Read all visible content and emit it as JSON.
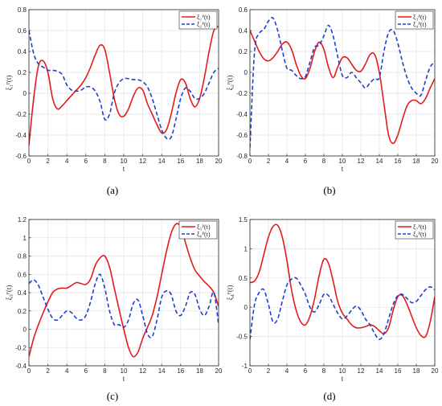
{
  "chart_data": [
    {
      "type": "line",
      "caption": "(a)",
      "xlabel": "t",
      "ylabel": "ξ₁ᴾ(t)",
      "xlim": [
        0,
        20
      ],
      "ylim": [
        -0.6,
        0.8
      ],
      "xticks": [
        "0",
        "2",
        "4",
        "6",
        "8",
        "10",
        "12",
        "14",
        "16",
        "18",
        "20"
      ],
      "yticks": [
        "-0.6",
        "-0.4",
        "-0.2",
        "0",
        "0.2",
        "0.4",
        "0.6",
        "0.8"
      ],
      "grid": true,
      "legend_position": "top-right",
      "series": [
        {
          "name": "ξ₁ᴾ(t)",
          "color": "#e41a1c",
          "style": "solid",
          "x": [
            0,
            0.5,
            1,
            1.5,
            2,
            2.5,
            3,
            3.5,
            4,
            4.5,
            5,
            5.5,
            6,
            6.5,
            7,
            7.5,
            8,
            8.5,
            9,
            9.5,
            10,
            10.5,
            11,
            11.5,
            12,
            12.5,
            13,
            13.5,
            14,
            14.5,
            15,
            15.5,
            16,
            16.5,
            17,
            17.5,
            18,
            18.5,
            19,
            19.5,
            20
          ],
          "y": [
            -0.5,
            -0.05,
            0.26,
            0.31,
            0.2,
            -0.05,
            -0.15,
            -0.12,
            -0.07,
            -0.02,
            0.03,
            0.08,
            0.15,
            0.25,
            0.37,
            0.46,
            0.42,
            0.2,
            -0.05,
            -0.2,
            -0.22,
            -0.15,
            -0.03,
            0.05,
            0.03,
            -0.1,
            -0.2,
            -0.3,
            -0.38,
            -0.35,
            -0.2,
            0.0,
            0.13,
            0.1,
            -0.05,
            -0.13,
            -0.05,
            0.15,
            0.4,
            0.6,
            0.64
          ]
        },
        {
          "name": "ξ₂ᴾ(t)",
          "color": "#1f3fcc",
          "style": "dashed",
          "x": [
            0,
            0.5,
            1,
            1.5,
            2,
            2.5,
            3,
            3.5,
            4,
            4.5,
            5,
            5.5,
            6,
            6.5,
            7,
            7.5,
            8,
            8.5,
            9,
            9.5,
            10,
            10.5,
            11,
            11.5,
            12,
            12.5,
            13,
            13.5,
            14,
            14.5,
            15,
            15.5,
            16,
            16.5,
            17,
            17.5,
            18,
            18.5,
            19,
            19.5,
            20
          ],
          "y": [
            0.6,
            0.38,
            0.28,
            0.25,
            0.22,
            0.22,
            0.21,
            0.18,
            0.08,
            0.03,
            0.02,
            0.03,
            0.06,
            0.06,
            0.02,
            -0.08,
            -0.25,
            -0.2,
            0.0,
            0.1,
            0.14,
            0.14,
            0.13,
            0.13,
            0.11,
            0.06,
            -0.05,
            -0.2,
            -0.35,
            -0.43,
            -0.42,
            -0.25,
            -0.05,
            0.05,
            0.02,
            -0.05,
            -0.05,
            0.0,
            0.1,
            0.2,
            0.24
          ]
        }
      ]
    },
    {
      "type": "line",
      "caption": "(b)",
      "xlabel": "t",
      "ylabel": "ξ₂ᴾ(t)",
      "xlim": [
        0,
        20
      ],
      "ylim": [
        -0.8,
        0.6
      ],
      "xticks": [
        "0",
        "2",
        "4",
        "6",
        "8",
        "10",
        "12",
        "14",
        "16",
        "18",
        "20"
      ],
      "yticks": [
        "-0.8",
        "-0.6",
        "-0.4",
        "-0.2",
        "0",
        "0.2",
        "0.4",
        "0.6"
      ],
      "grid": true,
      "legend_position": "top-right",
      "series": [
        {
          "name": "ξ₃ᴾ(t)",
          "color": "#e41a1c",
          "style": "solid",
          "x": [
            0,
            0.5,
            1,
            1.5,
            2,
            2.5,
            3,
            3.5,
            4,
            4.5,
            5,
            5.5,
            6,
            6.5,
            7,
            7.5,
            8,
            8.5,
            9,
            9.5,
            10,
            10.5,
            11,
            11.5,
            12,
            12.5,
            13,
            13.5,
            14,
            14.5,
            15,
            15.5,
            16,
            16.5,
            17,
            17.5,
            18,
            18.5,
            19,
            19.5,
            20
          ],
          "y": [
            0.4,
            0.3,
            0.2,
            0.13,
            0.11,
            0.14,
            0.2,
            0.27,
            0.29,
            0.22,
            0.08,
            -0.03,
            -0.06,
            0.04,
            0.2,
            0.29,
            0.22,
            0.05,
            -0.05,
            0.05,
            0.14,
            0.14,
            0.08,
            0.02,
            0.01,
            0.08,
            0.17,
            0.17,
            0.0,
            -0.3,
            -0.6,
            -0.68,
            -0.6,
            -0.45,
            -0.32,
            -0.27,
            -0.27,
            -0.3,
            -0.25,
            -0.15,
            -0.06
          ]
        },
        {
          "name": "ξ₄ᴾ(t)",
          "color": "#1f3fcc",
          "style": "dashed",
          "x": [
            0,
            0.5,
            1,
            1.5,
            2,
            2.5,
            3,
            3.5,
            4,
            4.5,
            5,
            5.5,
            6,
            6.5,
            7,
            7.5,
            8,
            8.5,
            9,
            9.5,
            10,
            10.5,
            11,
            11.5,
            12,
            12.5,
            13,
            13.5,
            14,
            14.5,
            15,
            15.5,
            16,
            16.5,
            17,
            17.5,
            18,
            18.5,
            19,
            19.5,
            20
          ],
          "y": [
            -0.72,
            0.2,
            0.37,
            0.41,
            0.49,
            0.52,
            0.4,
            0.21,
            0.04,
            0.02,
            -0.03,
            -0.06,
            -0.04,
            0.1,
            0.24,
            0.26,
            0.35,
            0.45,
            0.35,
            0.15,
            -0.03,
            -0.05,
            0.0,
            -0.05,
            -0.1,
            -0.15,
            -0.1,
            -0.06,
            -0.05,
            0.2,
            0.38,
            0.4,
            0.28,
            0.1,
            -0.05,
            -0.15,
            -0.2,
            -0.22,
            -0.08,
            0.05,
            0.1
          ]
        }
      ]
    },
    {
      "type": "line",
      "caption": "(c)",
      "xlabel": "t",
      "ylabel": "ξ₃ᴾ(t)",
      "xlim": [
        0,
        20
      ],
      "ylim": [
        -0.4,
        1.2
      ],
      "xticks": [
        "0",
        "2",
        "4",
        "6",
        "8",
        "10",
        "12",
        "14",
        "16",
        "18",
        "20"
      ],
      "yticks": [
        "-0.4",
        "-0.2",
        "0",
        "0.2",
        "0.4",
        "0.6",
        "0.8",
        "1",
        "1.2"
      ],
      "grid": true,
      "legend_position": "top-right",
      "series": [
        {
          "name": "ξ₅ᴾ(t)",
          "color": "#e41a1c",
          "style": "solid",
          "x": [
            0,
            0.5,
            1,
            1.5,
            2,
            2.5,
            3,
            3.5,
            4,
            4.5,
            5,
            5.5,
            6,
            6.5,
            7,
            7.5,
            8,
            8.5,
            9,
            9.5,
            10,
            10.5,
            11,
            11.5,
            12,
            12.5,
            13,
            13.5,
            14,
            14.5,
            15,
            15.5,
            16,
            16.5,
            17,
            17.5,
            18,
            18.5,
            19,
            19.5,
            20
          ],
          "y": [
            -0.3,
            -0.1,
            0.05,
            0.18,
            0.3,
            0.4,
            0.44,
            0.45,
            0.45,
            0.48,
            0.51,
            0.5,
            0.49,
            0.55,
            0.7,
            0.78,
            0.8,
            0.68,
            0.45,
            0.22,
            0.0,
            -0.2,
            -0.3,
            -0.25,
            -0.1,
            0.02,
            0.15,
            0.35,
            0.6,
            0.85,
            1.05,
            1.15,
            1.12,
            0.95,
            0.78,
            0.65,
            0.58,
            0.52,
            0.47,
            0.4,
            0.25
          ]
        },
        {
          "name": "ξ₆ᴾ(t)",
          "color": "#1f3fcc",
          "style": "dashed",
          "x": [
            0,
            0.5,
            1,
            1.5,
            2,
            2.5,
            3,
            3.5,
            4,
            4.5,
            5,
            5.5,
            6,
            6.5,
            7,
            7.5,
            8,
            8.5,
            9,
            9.5,
            10,
            10.5,
            11,
            11.5,
            12,
            12.5,
            13,
            13.5,
            14,
            14.5,
            15,
            15.5,
            16,
            16.5,
            17,
            17.5,
            18,
            18.5,
            19,
            19.5,
            20
          ],
          "y": [
            0.5,
            0.54,
            0.48,
            0.35,
            0.22,
            0.12,
            0.1,
            0.15,
            0.2,
            0.18,
            0.12,
            0.1,
            0.15,
            0.3,
            0.5,
            0.6,
            0.45,
            0.2,
            0.05,
            0.05,
            0.02,
            0.1,
            0.28,
            0.32,
            0.15,
            -0.05,
            -0.08,
            0.1,
            0.35,
            0.42,
            0.38,
            0.2,
            0.15,
            0.25,
            0.4,
            0.38,
            0.22,
            0.15,
            0.25,
            0.4,
            0.05
          ]
        }
      ]
    },
    {
      "type": "line",
      "caption": "(d)",
      "xlabel": "t",
      "ylabel": "ξ₄ᴾ(t)",
      "xlim": [
        0,
        20
      ],
      "ylim": [
        -1,
        1.5
      ],
      "xticks": [
        "0",
        "2",
        "4",
        "6",
        "8",
        "10",
        "12",
        "14",
        "16",
        "18",
        "20"
      ],
      "yticks": [
        "-1",
        "-0.5",
        "0",
        "0.5",
        "1",
        "1.5"
      ],
      "grid": true,
      "legend_position": "top-right",
      "series": [
        {
          "name": "ξ₇ᴾ(t)",
          "color": "#e41a1c",
          "style": "solid",
          "x": [
            0,
            0.5,
            1,
            1.5,
            2,
            2.5,
            3,
            3.5,
            4,
            4.5,
            5,
            5.5,
            6,
            6.5,
            7,
            7.5,
            8,
            8.5,
            9,
            9.5,
            10,
            10.5,
            11,
            11.5,
            12,
            12.5,
            13,
            13.5,
            14,
            14.5,
            15,
            15.5,
            16,
            16.5,
            17,
            17.5,
            18,
            18.5,
            19,
            19.5,
            20
          ],
          "y": [
            0.42,
            0.45,
            0.6,
            0.9,
            1.2,
            1.38,
            1.4,
            1.2,
            0.8,
            0.3,
            -0.05,
            -0.25,
            -0.3,
            -0.15,
            0.15,
            0.55,
            0.82,
            0.75,
            0.45,
            0.1,
            -0.1,
            -0.2,
            -0.3,
            -0.35,
            -0.35,
            -0.33,
            -0.3,
            -0.33,
            -0.4,
            -0.45,
            -0.35,
            -0.05,
            0.18,
            0.2,
            0.05,
            -0.15,
            -0.35,
            -0.48,
            -0.5,
            -0.25,
            0.18
          ]
        },
        {
          "name": "ξ₈ᴾ(t)",
          "color": "#1f3fcc",
          "style": "dashed",
          "x": [
            0,
            0.5,
            1,
            1.5,
            2,
            2.5,
            3,
            3.5,
            4,
            4.5,
            5,
            5.5,
            6,
            6.5,
            7,
            7.5,
            8,
            8.5,
            9,
            9.5,
            10,
            10.5,
            11,
            11.5,
            12,
            12.5,
            13,
            13.5,
            14,
            14.5,
            15,
            15.5,
            16,
            16.5,
            17,
            17.5,
            18,
            18.5,
            19,
            19.5,
            20
          ],
          "y": [
            -0.55,
            0.05,
            0.25,
            0.3,
            0.05,
            -0.25,
            -0.2,
            0.1,
            0.38,
            0.48,
            0.5,
            0.38,
            0.22,
            0.0,
            -0.08,
            0.05,
            0.22,
            0.2,
            0.05,
            -0.1,
            -0.2,
            -0.15,
            -0.05,
            0.02,
            -0.05,
            -0.2,
            -0.3,
            -0.45,
            -0.55,
            -0.45,
            -0.2,
            0.05,
            0.2,
            0.22,
            0.15,
            0.08,
            0.1,
            0.2,
            0.3,
            0.35,
            0.3
          ]
        }
      ]
    }
  ]
}
